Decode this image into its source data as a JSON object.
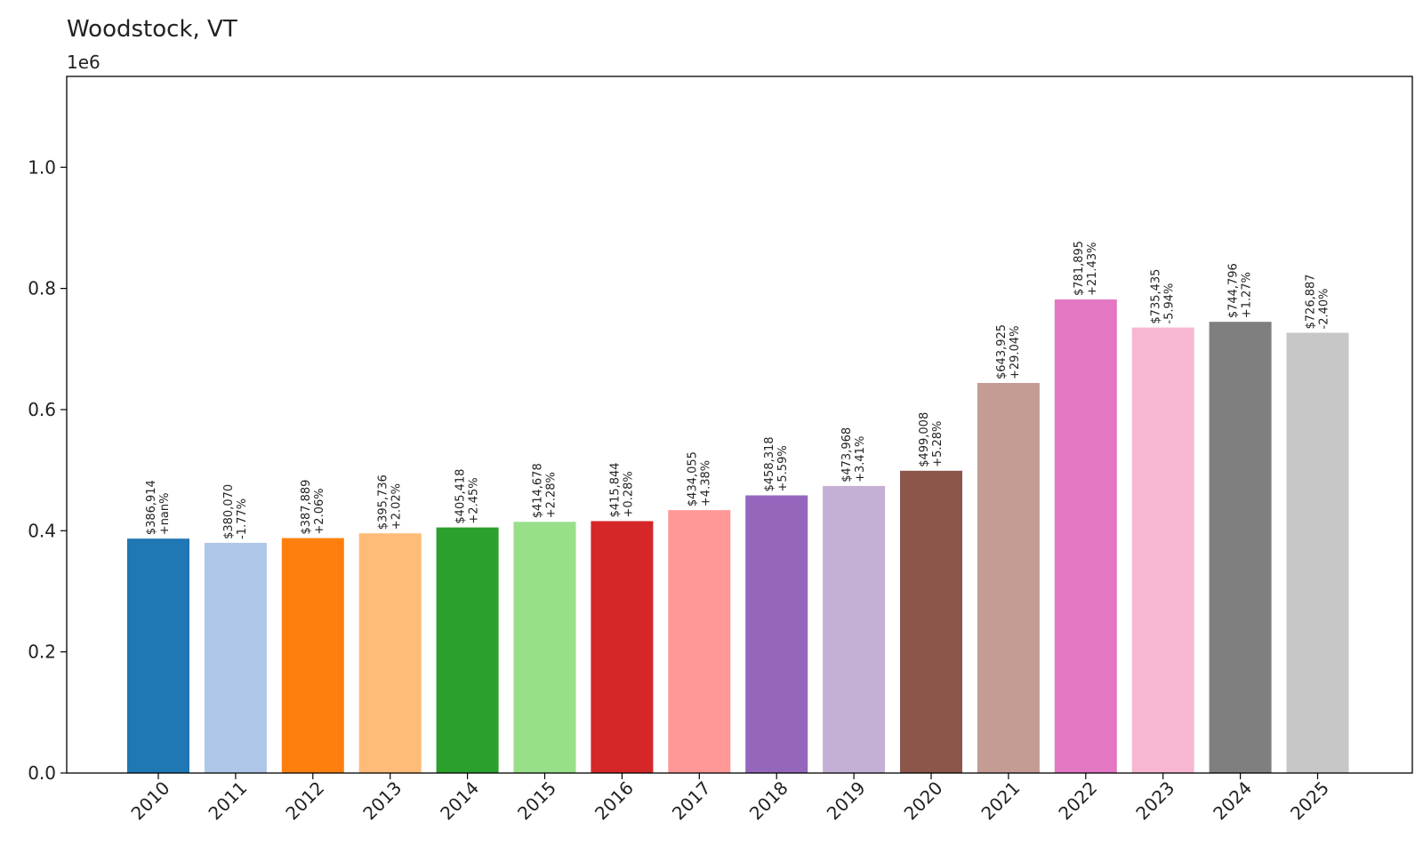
{
  "chart_data": {
    "type": "bar",
    "title": "Woodstock, VT",
    "y_offset_label": "1e6",
    "xlabel": "",
    "ylabel": "",
    "ylim": [
      0,
      1.15
    ],
    "yticks": [
      "0.0",
      "0.2",
      "0.4",
      "0.6",
      "0.8",
      "1.0"
    ],
    "ytick_values": [
      0.0,
      0.2,
      0.4,
      0.6,
      0.8,
      1.0
    ],
    "grid": false,
    "categories": [
      "2010",
      "2011",
      "2012",
      "2013",
      "2014",
      "2015",
      "2016",
      "2017",
      "2018",
      "2019",
      "2020",
      "2021",
      "2022",
      "2023",
      "2024",
      "2025"
    ],
    "values": [
      386914,
      380070,
      387889,
      395736,
      405418,
      414678,
      415844,
      434055,
      458318,
      473968,
      499008,
      643925,
      781895,
      735435,
      744796,
      726887
    ],
    "value_labels": [
      "$386,914",
      "$380,070",
      "$387,889",
      "$395,736",
      "$405,418",
      "$414,678",
      "$415,844",
      "$434,055",
      "$458,318",
      "$473,968",
      "$499,008",
      "$643,925",
      "$781,895",
      "$735,435",
      "$744,796",
      "$726,887"
    ],
    "change_labels": [
      "+nan%",
      "-1.77%",
      "+2.06%",
      "+2.02%",
      "+2.45%",
      "+2.28%",
      "+0.28%",
      "+4.38%",
      "+5.59%",
      "+3.41%",
      "+5.28%",
      "+29.04%",
      "+21.43%",
      "-5.94%",
      "+1.27%",
      "-2.40%"
    ],
    "colors": [
      "#1f77b4",
      "#aec7e8",
      "#ff7f0e",
      "#ffbb78",
      "#2ca02c",
      "#98df8a",
      "#d62728",
      "#ff9896",
      "#9467bd",
      "#c5b0d5",
      "#8c564b",
      "#c49c94",
      "#e377c2",
      "#f7b6d2",
      "#7f7f7f",
      "#c7c7c7"
    ]
  }
}
